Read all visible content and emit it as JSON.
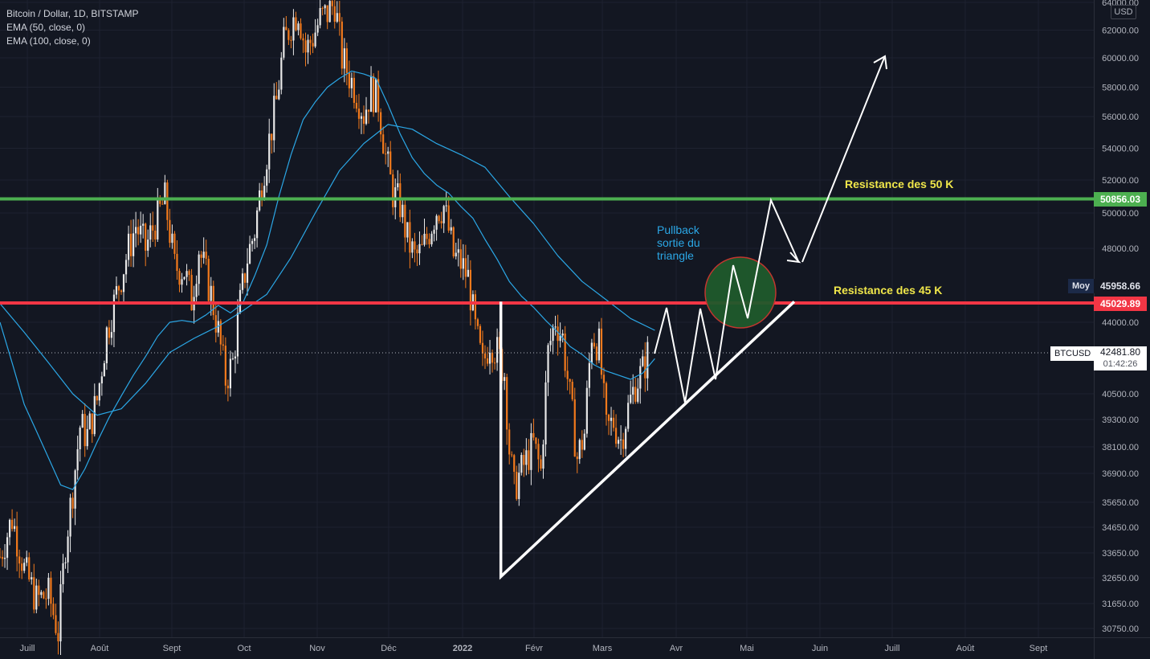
{
  "chart_data": {
    "type": "candlestick",
    "title": "Bitcoin / Dollar, 1D, BITSTAMP",
    "indicators": [
      "EMA (50, close, 0)",
      "EMA (100, close, 0)"
    ],
    "currency": "USD",
    "x_ticks": [
      "Juill",
      "Août",
      "Sept",
      "Oct",
      "Nov",
      "Déc",
      "2022",
      "Févr",
      "Mars",
      "Avr",
      "Mai",
      "Juin",
      "Juill",
      "Août",
      "Sept"
    ],
    "y_ticks": [
      {
        "value": 64000,
        "label": "64000.00"
      },
      {
        "value": 62000,
        "label": "62000.00"
      },
      {
        "value": 60000,
        "label": "60000.00"
      },
      {
        "value": 58000,
        "label": "58000.00"
      },
      {
        "value": 56000,
        "label": "56000.00"
      },
      {
        "value": 54000,
        "label": "54000.00"
      },
      {
        "value": 52000,
        "label": "52000.00"
      },
      {
        "value": 50000,
        "label": "50000.00"
      },
      {
        "value": 48000,
        "label": "48000.00"
      },
      {
        "value": 44000,
        "label": "44000.00"
      },
      {
        "value": 40500,
        "label": "40500.00"
      },
      {
        "value": 39300,
        "label": "39300.00"
      },
      {
        "value": 38100,
        "label": "38100.00"
      },
      {
        "value": 36900,
        "label": "36900.00"
      },
      {
        "value": 35650,
        "label": "35650.00"
      },
      {
        "value": 34650,
        "label": "34650.00"
      },
      {
        "value": 33650,
        "label": "33650.00"
      },
      {
        "value": 32650,
        "label": "32650.00"
      },
      {
        "value": 31650,
        "label": "31650.00"
      },
      {
        "value": 30750,
        "label": "30750.00"
      }
    ],
    "price_path": [
      [
        0,
        33500
      ],
      [
        5,
        35000
      ],
      [
        10,
        33000
      ],
      [
        15,
        31800
      ],
      [
        20,
        32000
      ],
      [
        24,
        30600
      ],
      [
        27,
        34000
      ],
      [
        30,
        36200
      ],
      [
        33,
        39000
      ],
      [
        36,
        38600
      ],
      [
        40,
        40200
      ],
      [
        44,
        43500
      ],
      [
        48,
        45500
      ],
      [
        52,
        47500
      ],
      [
        56,
        49300
      ],
      [
        60,
        48000
      ],
      [
        64,
        49500
      ],
      [
        68,
        50800
      ],
      [
        72,
        47000
      ],
      [
        76,
        46800
      ],
      [
        79,
        45200
      ],
      [
        82,
        48000
      ],
      [
        84,
        47000
      ],
      [
        87,
        45500
      ],
      [
        90,
        43500
      ],
      [
        93,
        41200
      ],
      [
        96,
        42000
      ],
      [
        99,
        45000
      ],
      [
        102,
        47500
      ],
      [
        105,
        49000
      ],
      [
        108,
        52000
      ],
      [
        111,
        54500
      ],
      [
        114,
        57000
      ],
      [
        117,
        61000
      ],
      [
        120,
        62500
      ],
      [
        123,
        63500
      ],
      [
        126,
        60500
      ],
      [
        129,
        61500
      ],
      [
        132,
        62800
      ],
      [
        135,
        63200
      ],
      [
        138,
        64000
      ],
      [
        141,
        60000
      ],
      [
        144,
        58800
      ],
      [
        147,
        57600
      ],
      [
        150,
        56200
      ],
      [
        153,
        57800
      ],
      [
        156,
        57000
      ],
      [
        159,
        53500
      ],
      [
        162,
        51200
      ],
      [
        165,
        50500
      ],
      [
        168,
        48500
      ],
      [
        171,
        47500
      ],
      [
        174,
        47800
      ],
      [
        177,
        49000
      ],
      [
        180,
        50200
      ],
      [
        183,
        50400
      ],
      [
        185,
        49000
      ],
      [
        187,
        47600
      ],
      [
        190,
        47200
      ],
      [
        193,
        46400
      ],
      [
        196,
        43600
      ],
      [
        199,
        41800
      ],
      [
        202,
        43200
      ],
      [
        205,
        42500
      ],
      [
        208,
        41500
      ],
      [
        210,
        38000
      ],
      [
        212,
        36200
      ],
      [
        214,
        36800
      ],
      [
        217,
        37500
      ],
      [
        220,
        38200
      ],
      [
        223,
        37000
      ],
      [
        226,
        42500
      ],
      [
        229,
        44200
      ],
      [
        232,
        43200
      ],
      [
        235,
        40300
      ],
      [
        238,
        37600
      ],
      [
        241,
        38700
      ],
      [
        244,
        43500
      ],
      [
        247,
        42800
      ],
      [
        250,
        38800
      ],
      [
        253,
        39200
      ],
      [
        256,
        38400
      ],
      [
        259,
        39800
      ],
      [
        262,
        41000
      ],
      [
        265,
        41600
      ],
      [
        267,
        42400
      ]
    ],
    "ema50_path": [
      [
        0,
        44000
      ],
      [
        5,
        42000
      ],
      [
        10,
        40000
      ],
      [
        15,
        38800
      ],
      [
        20,
        37600
      ],
      [
        25,
        36400
      ],
      [
        30,
        36200
      ],
      [
        35,
        37100
      ],
      [
        40,
        38300
      ],
      [
        45,
        39400
      ],
      [
        50,
        40400
      ],
      [
        55,
        41400
      ],
      [
        60,
        42300
      ],
      [
        65,
        43300
      ],
      [
        70,
        44000
      ],
      [
        75,
        44100
      ],
      [
        80,
        44000
      ],
      [
        85,
        44400
      ],
      [
        90,
        44900
      ],
      [
        95,
        44500
      ],
      [
        100,
        45000
      ],
      [
        105,
        46500
      ],
      [
        110,
        48200
      ],
      [
        115,
        51000
      ],
      [
        120,
        53600
      ],
      [
        125,
        55800
      ],
      [
        130,
        57000
      ],
      [
        135,
        58000
      ],
      [
        140,
        58600
      ],
      [
        145,
        59100
      ],
      [
        150,
        58900
      ],
      [
        155,
        58600
      ],
      [
        160,
        56800
      ],
      [
        165,
        54900
      ],
      [
        170,
        53400
      ],
      [
        175,
        52400
      ],
      [
        180,
        51700
      ],
      [
        185,
        51200
      ],
      [
        190,
        50400
      ],
      [
        195,
        49700
      ],
      [
        200,
        48500
      ],
      [
        205,
        47400
      ],
      [
        210,
        46200
      ],
      [
        215,
        45400
      ],
      [
        220,
        44800
      ],
      [
        225,
        44100
      ],
      [
        230,
        43500
      ],
      [
        235,
        42800
      ],
      [
        240,
        42400
      ],
      [
        245,
        41900
      ],
      [
        250,
        41600
      ],
      [
        255,
        41400
      ],
      [
        260,
        41200
      ],
      [
        265,
        41500
      ],
      [
        270,
        42200
      ]
    ],
    "ema100_path": [
      [
        0,
        45000
      ],
      [
        10,
        43500
      ],
      [
        20,
        42000
      ],
      [
        30,
        40500
      ],
      [
        40,
        39500
      ],
      [
        50,
        39800
      ],
      [
        60,
        41000
      ],
      [
        70,
        42500
      ],
      [
        80,
        43200
      ],
      [
        90,
        43800
      ],
      [
        100,
        44600
      ],
      [
        110,
        45500
      ],
      [
        120,
        47500
      ],
      [
        130,
        50000
      ],
      [
        140,
        52600
      ],
      [
        150,
        54300
      ],
      [
        160,
        55500
      ],
      [
        170,
        55200
      ],
      [
        180,
        54300
      ],
      [
        190,
        53600
      ],
      [
        200,
        52800
      ],
      [
        210,
        51000
      ],
      [
        220,
        49400
      ],
      [
        230,
        47600
      ],
      [
        240,
        46200
      ],
      [
        250,
        45200
      ],
      [
        260,
        44200
      ],
      [
        270,
        43600
      ]
    ],
    "support_lines": [
      {
        "price": 50856.03,
        "color": "#4caf50",
        "label": "Resistance des 50 K",
        "price_label": "50856.03"
      },
      {
        "price": 45029.89,
        "color": "#f23645",
        "label": "Resistance des 45 K",
        "price_label": "45029.89"
      }
    ],
    "triangle": {
      "apex_day": 184,
      "low_price": 32700,
      "top_price": 45100,
      "end_day": 297
    },
    "projection_path": [
      [
        267,
        42400
      ],
      [
        272,
        45000
      ],
      [
        279,
        40800
      ],
      [
        286,
        45000
      ],
      [
        292,
        41400
      ],
      [
        298,
        45000
      ]
    ],
    "projection_path2": [
      [
        298,
        45000
      ],
      [
        305,
        47600
      ],
      [
        312,
        44000
      ],
      [
        322,
        51000
      ],
      [
        333,
        47700
      ]
    ],
    "projection_arrow": [
      [
        336,
        47400
      ],
      [
        370,
        60000
      ]
    ],
    "circle": {
      "day": 303,
      "price": 45900
    },
    "moy": {
      "label": "Moy",
      "value": "45958.66",
      "price": 45958.66
    },
    "current": {
      "symbol": "BTCUSD",
      "price": 42481.8,
      "price_label": "42481.80",
      "countdown": "01:42:26"
    },
    "annotations": {
      "pullback": [
        "Pullback",
        "sortie du",
        "triangle"
      ]
    },
    "colors": {
      "up": "#e8e8e8",
      "down": "#f37a1c",
      "ema": "#2ba7e6",
      "background": "#131722",
      "grid": "#1e2230"
    }
  }
}
